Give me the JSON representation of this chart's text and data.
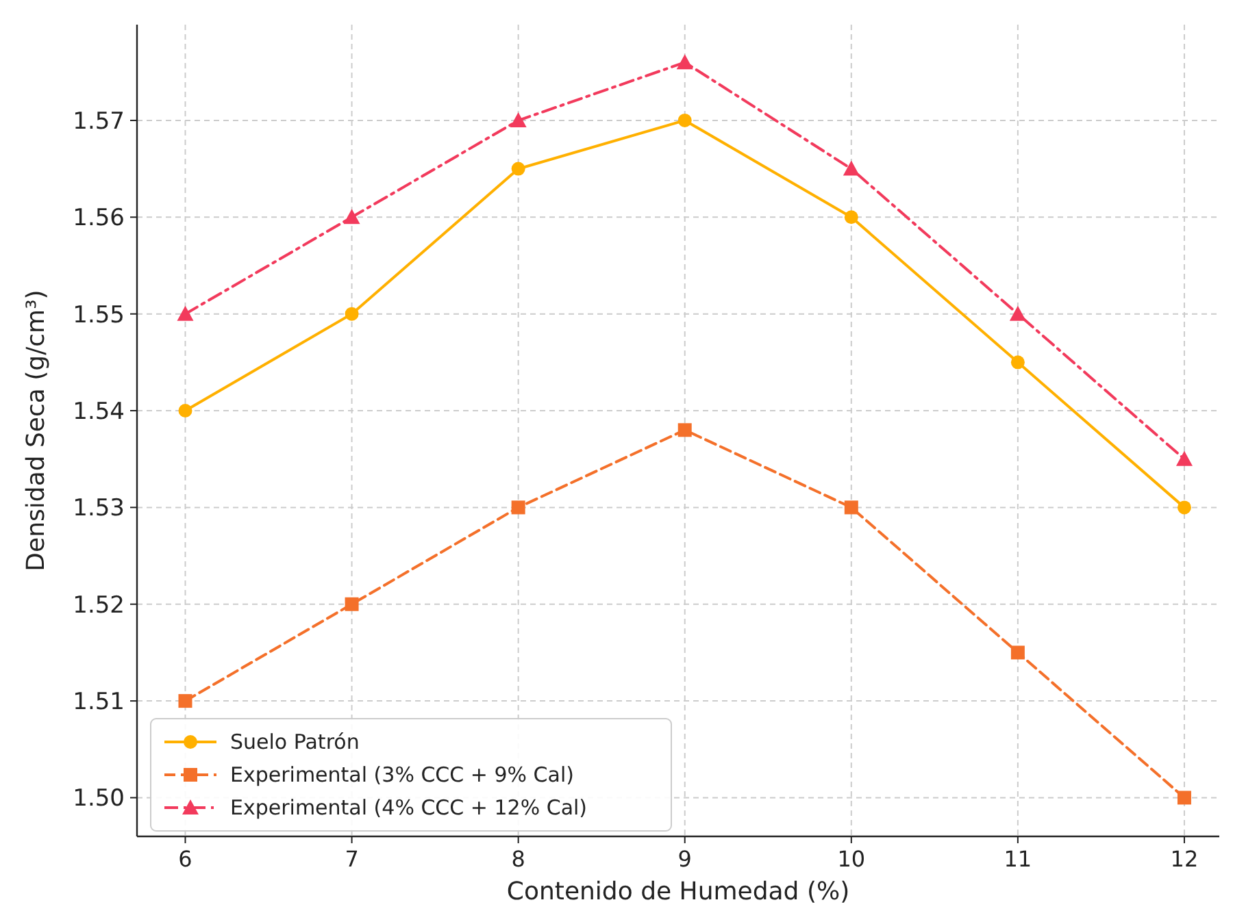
{
  "chart_data": {
    "type": "line",
    "xlabel": "Contenido de Humedad (%)",
    "ylabel": "Densidad Seca (g/cm³)",
    "x": [
      6,
      7,
      8,
      9,
      10,
      11,
      12
    ],
    "xlim": [
      5.71,
      12.21
    ],
    "xticks": [
      6,
      7,
      8,
      9,
      10,
      11,
      12
    ],
    "ylim": [
      1.496,
      1.5799
    ],
    "yticks": [
      {
        "value": 1.5,
        "label": "1.50"
      },
      {
        "value": 1.51,
        "label": "1.51"
      },
      {
        "value": 1.52,
        "label": "1.52"
      },
      {
        "value": 1.53,
        "label": "1.53"
      },
      {
        "value": 1.54,
        "label": "1.54"
      },
      {
        "value": 1.55,
        "label": "1.55"
      },
      {
        "value": 1.56,
        "label": "1.56"
      },
      {
        "value": 1.57,
        "label": "1.57"
      }
    ],
    "grid": true,
    "legend": "bottom left",
    "series": [
      {
        "name": "Suelo Patrón",
        "color": "#ffb000",
        "marker": "circle",
        "line_style": "solid",
        "values": [
          1.54,
          1.55,
          1.565,
          1.57,
          1.56,
          1.545,
          1.53
        ]
      },
      {
        "name": "Experimental (3% CCC + 9% Cal)",
        "color": "#f4702a",
        "marker": "square",
        "line_style": "dashed",
        "values": [
          1.51,
          1.52,
          1.53,
          1.538,
          1.53,
          1.515,
          1.5
        ]
      },
      {
        "name": "Experimental (4% CCC + 12% Cal)",
        "color": "#f23a5c",
        "marker": "triangle",
        "line_style": "dashdot",
        "values": [
          1.55,
          1.56,
          1.57,
          1.576,
          1.565,
          1.55,
          1.535
        ]
      }
    ]
  }
}
